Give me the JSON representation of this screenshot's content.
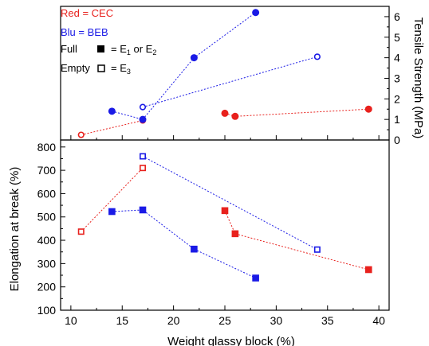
{
  "colors": {
    "red": "#e8211d",
    "blue": "#1a1ae6",
    "axis": "#000000"
  },
  "legend": {
    "red_label": "Red = CEC",
    "blue_label": "Blu = BEB",
    "full_label": "Full",
    "full_desc": "= E",
    "full_sub1": "1",
    "full_or": " or E",
    "full_sub2": "2",
    "empty_label": "Empty",
    "empty_desc": "= E",
    "empty_sub": "3"
  },
  "chart_data": [
    {
      "type": "scatter",
      "panel": "top",
      "ylabel": "Tensile Strength (MPa)",
      "ylim": [
        0,
        6.5
      ],
      "yticks": [
        "0",
        "1",
        "2",
        "3",
        "4",
        "5",
        "6"
      ],
      "xlim": [
        9,
        41
      ],
      "marker": "circle",
      "series": [
        {
          "color": "red",
          "filled": false,
          "points": [
            [
              11,
              0.25
            ],
            [
              17,
              0.95
            ]
          ]
        },
        {
          "color": "blue",
          "filled": false,
          "points": [
            [
              17,
              1.6
            ],
            [
              34,
              4.05
            ]
          ]
        },
        {
          "color": "blue",
          "filled": true,
          "points": [
            [
              14,
              1.4
            ],
            [
              17,
              1.0
            ],
            [
              22,
              4.0
            ],
            [
              28,
              6.2
            ]
          ]
        },
        {
          "color": "red",
          "filled": true,
          "points": [
            [
              25,
              1.3
            ],
            [
              26,
              1.15
            ],
            [
              39,
              1.5
            ]
          ]
        }
      ]
    },
    {
      "type": "scatter",
      "panel": "bottom",
      "xlabel": "Weight glassy block (%)",
      "ylabel": "Elongation at break (%)",
      "ylim": [
        100,
        830
      ],
      "yticks": [
        "100",
        "200",
        "300",
        "400",
        "500",
        "600",
        "700",
        "800"
      ],
      "xlim": [
        9,
        41
      ],
      "xticks": [
        "10",
        "15",
        "20",
        "25",
        "30",
        "35",
        "40"
      ],
      "marker": "square",
      "series": [
        {
          "color": "red",
          "filled": false,
          "points": [
            [
              11,
              437
            ],
            [
              17,
              710
            ]
          ]
        },
        {
          "color": "blue",
          "filled": false,
          "points": [
            [
              17,
              760
            ],
            [
              34,
              360
            ]
          ]
        },
        {
          "color": "blue",
          "filled": true,
          "points": [
            [
              14,
              523
            ],
            [
              17,
              530
            ],
            [
              22,
              362
            ],
            [
              28,
              238
            ]
          ]
        },
        {
          "color": "red",
          "filled": true,
          "points": [
            [
              25,
              527
            ],
            [
              26,
              428
            ],
            [
              39,
              274
            ]
          ]
        }
      ]
    }
  ]
}
